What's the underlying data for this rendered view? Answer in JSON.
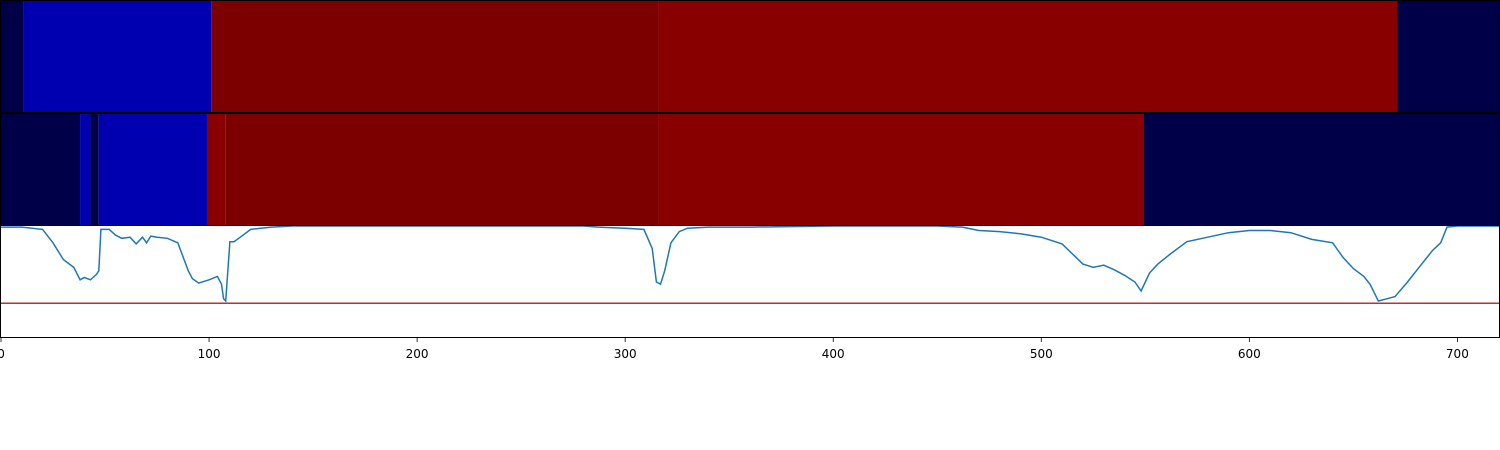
{
  "chart_data": [
    {
      "type": "heatmap",
      "title": "",
      "xlabel": "",
      "ylabel": "",
      "xlim": [
        0,
        720
      ],
      "colormap": "seismic",
      "segments": [
        {
          "start": 0,
          "end": 11,
          "color": "#000049"
        },
        {
          "start": 11,
          "end": 101,
          "color": "#0000b0"
        },
        {
          "start": 101,
          "end": 316,
          "color": "#7c0000"
        },
        {
          "start": 316,
          "end": 671,
          "color": "#890000"
        },
        {
          "start": 671,
          "end": 720,
          "color": "#000049"
        }
      ]
    },
    {
      "type": "heatmap",
      "title": "",
      "xlabel": "",
      "ylabel": "",
      "xlim": [
        0,
        720
      ],
      "colormap": "seismic",
      "segments": [
        {
          "start": 0,
          "end": 38,
          "color": "#000049"
        },
        {
          "start": 38,
          "end": 43,
          "color": "#0000b0"
        },
        {
          "start": 43,
          "end": 47,
          "color": "#000049"
        },
        {
          "start": 47,
          "end": 99,
          "color": "#0000b0"
        },
        {
          "start": 99,
          "end": 108,
          "color": "#890000"
        },
        {
          "start": 108,
          "end": 316,
          "color": "#7c0000"
        },
        {
          "start": 316,
          "end": 549,
          "color": "#890000"
        },
        {
          "start": 549,
          "end": 720,
          "color": "#000049"
        }
      ]
    },
    {
      "type": "line",
      "title": "",
      "xlabel": "",
      "ylabel": "",
      "xlim": [
        0,
        720
      ],
      "ylim": [
        0,
        1
      ],
      "xticks": [
        0,
        100,
        200,
        300,
        400,
        500,
        600,
        700
      ],
      "grid": false,
      "series": [
        {
          "color": "#1f77b4",
          "x": [
            0,
            10,
            20,
            25,
            30,
            35,
            38,
            40,
            43,
            46,
            47,
            48,
            52,
            55,
            58,
            62,
            65,
            68,
            70,
            72,
            75,
            80,
            85,
            88,
            90,
            92,
            95,
            100,
            104,
            106,
            107,
            108,
            110,
            112,
            115,
            120,
            130,
            140,
            150,
            200,
            250,
            280,
            287,
            300,
            309,
            313,
            315,
            317,
            319,
            322,
            326,
            330,
            340,
            350,
            360,
            400,
            450,
            462,
            470,
            480,
            490,
            500,
            510,
            515,
            520,
            525,
            530,
            535,
            540,
            545,
            548,
            552,
            556,
            562,
            570,
            580,
            590,
            600,
            610,
            620,
            630,
            640,
            645,
            650,
            655,
            658,
            662,
            666,
            670,
            676,
            682,
            688,
            692,
            695,
            700,
            710,
            720
          ],
          "y": [
            0.99,
            0.99,
            0.97,
            0.85,
            0.7,
            0.63,
            0.52,
            0.54,
            0.52,
            0.57,
            0.6,
            0.97,
            0.97,
            0.92,
            0.89,
            0.9,
            0.84,
            0.9,
            0.85,
            0.91,
            0.9,
            0.89,
            0.85,
            0.7,
            0.6,
            0.53,
            0.49,
            0.52,
            0.55,
            0.48,
            0.35,
            0.33,
            0.86,
            0.86,
            0.9,
            0.97,
            0.99,
            1.0,
            1.0,
            1.0,
            1.0,
            1.0,
            0.99,
            0.98,
            0.97,
            0.8,
            0.5,
            0.48,
            0.6,
            0.85,
            0.95,
            0.98,
            0.99,
            0.99,
            0.99,
            1.0,
            1.0,
            0.99,
            0.96,
            0.95,
            0.93,
            0.9,
            0.84,
            0.75,
            0.66,
            0.63,
            0.65,
            0.61,
            0.56,
            0.5,
            0.42,
            0.58,
            0.66,
            0.75,
            0.86,
            0.9,
            0.94,
            0.96,
            0.96,
            0.94,
            0.88,
            0.85,
            0.72,
            0.62,
            0.55,
            0.48,
            0.33,
            0.35,
            0.37,
            0.5,
            0.64,
            0.78,
            0.85,
            0.99,
            1.0,
            1.0,
            1.0
          ]
        }
      ],
      "hlines": [
        {
          "y": 0.31,
          "color": "#d62728"
        }
      ]
    }
  ]
}
